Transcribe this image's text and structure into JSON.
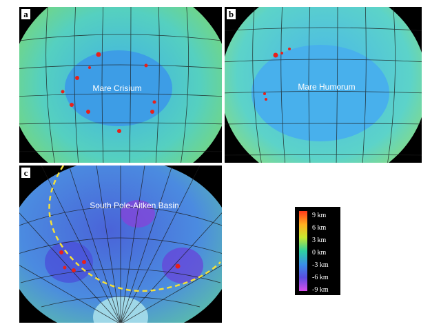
{
  "panels": [
    {
      "label": "a",
      "name": "Mare Crisium"
    },
    {
      "label": "b",
      "name": "Mare Humorum"
    },
    {
      "label": "c",
      "name": "South Pole-Aitken Basin"
    }
  ],
  "colorbar": {
    "labels": [
      "9 km",
      "6 km",
      "3 km",
      "0 km",
      "-3 km",
      "-6 km",
      "-9 km"
    ]
  }
}
